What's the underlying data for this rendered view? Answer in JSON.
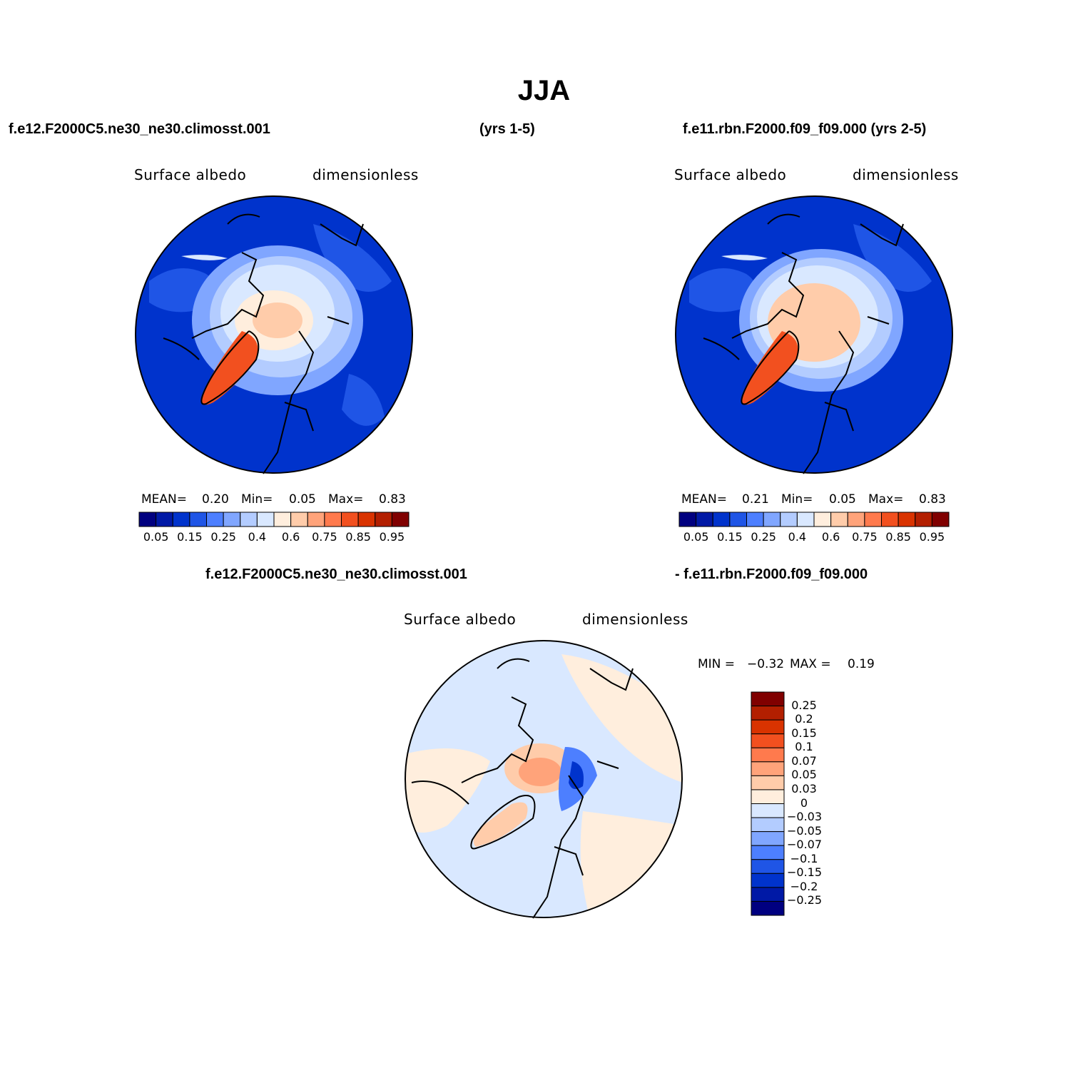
{
  "title": "JJA",
  "case1": {
    "name": "f.e12.F2000C5.ne30_ne30.climosst.001",
    "years": "(yrs 1-5)"
  },
  "case2": {
    "name": "f.e11.rbn.F2000.f09_f09.000 (yrs 2-5)"
  },
  "diff": {
    "left": "f.e12.F2000C5.ne30_ne30.climosst.001",
    "right": "- f.e11.rbn.F2000.f09_f09.000"
  },
  "panels": [
    {
      "variable": "Surface albedo",
      "units": "dimensionless",
      "mean_label": "MEAN=",
      "mean": "0.20",
      "min_label": "Min=",
      "min": "0.05",
      "max_label": "Max=",
      "max": "0.83"
    },
    {
      "variable": "Surface albedo",
      "units": "dimensionless",
      "mean_label": "MEAN=",
      "mean": "0.21",
      "min_label": "Min=",
      "min": "0.05",
      "max_label": "Max=",
      "max": "0.83"
    },
    {
      "variable": "Surface albedo",
      "units": "dimensionless",
      "min_label": "MIN =",
      "min": "−0.32",
      "max_label": "MAX =",
      "max": "0.19"
    }
  ],
  "colorbar_abs": {
    "colors": [
      "#000080",
      "#0019a6",
      "#0033cc",
      "#1f55e6",
      "#4d7fff",
      "#80a6ff",
      "#b3ccff",
      "#d9e8ff",
      "#ffeedd",
      "#ffccaa",
      "#ffa37a",
      "#ff7a4d",
      "#f2501f",
      "#d93300",
      "#b31f00",
      "#800000"
    ],
    "tick_labels": [
      "0.05",
      "0.15",
      "0.25",
      "0.4",
      "0.6",
      "0.75",
      "0.85",
      "0.95"
    ]
  },
  "colorbar_diff": {
    "colors": [
      "#800000",
      "#b31f00",
      "#d93300",
      "#f2501f",
      "#ff7a4d",
      "#ffa37a",
      "#ffccaa",
      "#ffeedd",
      "#d9e8ff",
      "#b3ccff",
      "#80a6ff",
      "#4d7fff",
      "#1f55e6",
      "#0033cc",
      "#0019a6",
      "#000080"
    ],
    "tick_labels": [
      "0.25",
      "0.2",
      "0.15",
      "0.1",
      "0.07",
      "0.05",
      "0.03",
      "0",
      "−0.03",
      "−0.05",
      "−0.07",
      "−0.1",
      "−0.15",
      "−0.2",
      "−0.25"
    ]
  },
  "map_colors": {
    "ocean_low": "#0033cc",
    "ocean_mid": "#1f55e6",
    "ice_light": "#d9e8ff",
    "ice_pale": "#b3ccff",
    "peach": "#ffccaa",
    "greenland": "#f2501f",
    "diff_bg": "#d9e8ff",
    "diff_pos": "#ffeedd",
    "diff_neg": "#1f55e6"
  }
}
